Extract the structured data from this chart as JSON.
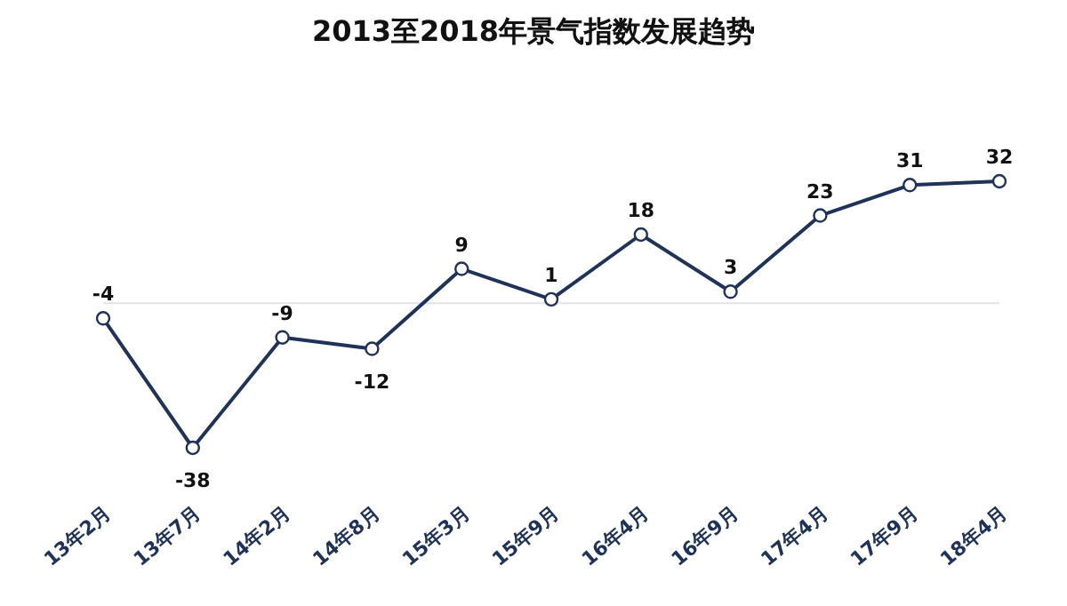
{
  "chart_data": {
    "type": "line",
    "title": "2013至2018年景气指数发展趋势",
    "categories": [
      "13年2月",
      "13年7月",
      "14年2月",
      "14年8月",
      "15年3月",
      "15年9月",
      "16年4月",
      "16年9月",
      "17年4月",
      "17年9月",
      "18年4月"
    ],
    "series": [
      {
        "color": "#1f3358",
        "values": [
          -4,
          -38,
          -9,
          -12,
          9,
          1,
          18,
          3,
          23,
          31,
          32
        ]
      }
    ],
    "data_labels": true,
    "marker": "circle",
    "line_style": "solid",
    "ref_lines": [
      {
        "axis": "y",
        "value": 0,
        "color": "#e3e3e3"
      }
    ]
  }
}
